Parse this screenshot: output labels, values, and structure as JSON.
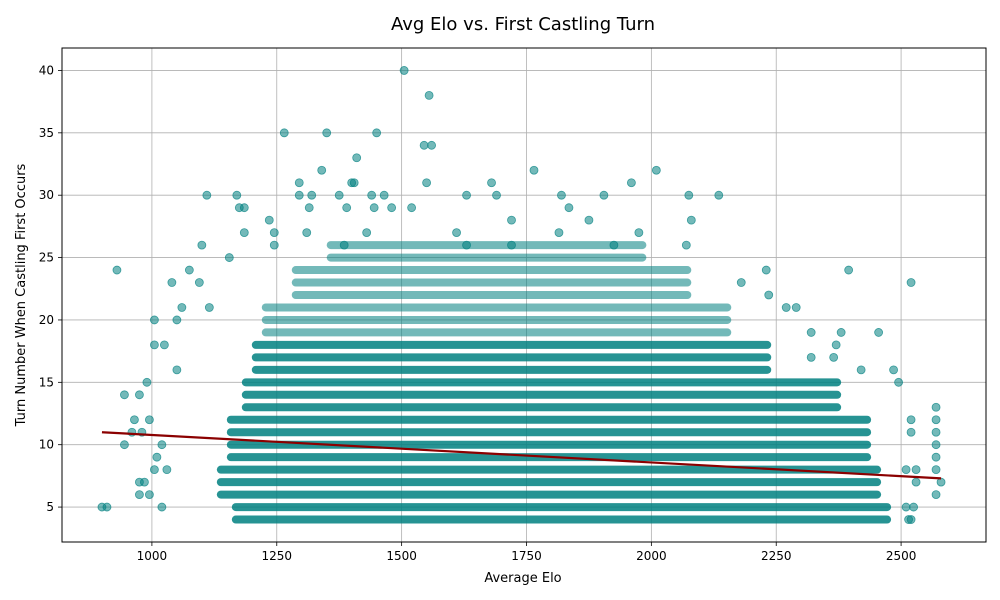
{
  "chart_data": {
    "type": "scatter",
    "title": "Avg Elo vs. First Castling Turn",
    "xlabel": "Average Elo",
    "ylabel": "Turn Number When Castling First Occurs",
    "xlim": [
      820,
      2670
    ],
    "ylim": [
      2.2,
      41.8
    ],
    "x_ticks": [
      1000,
      1250,
      1500,
      1750,
      2000,
      2250,
      2500
    ],
    "y_ticks": [
      5,
      10,
      15,
      20,
      25,
      30,
      35,
      40
    ],
    "grid": true,
    "point_color": "#008080",
    "line_color": "#8B0000",
    "trend_line": {
      "x": [
        900,
        2580
      ],
      "y": [
        11.0,
        7.3
      ]
    },
    "points": {
      "dense_band": {
        "x_range": [
          1230,
          2060
        ],
        "y_range": [
          4,
          18
        ]
      },
      "outliers": [
        {
          "x": 1505,
          "y": 40
        },
        {
          "x": 1555,
          "y": 38
        },
        {
          "x": 1265,
          "y": 35
        },
        {
          "x": 1350,
          "y": 35
        },
        {
          "x": 1450,
          "y": 35
        },
        {
          "x": 1545,
          "y": 34
        },
        {
          "x": 1560,
          "y": 34
        },
        {
          "x": 1410,
          "y": 33
        },
        {
          "x": 1340,
          "y": 32
        },
        {
          "x": 1765,
          "y": 32
        },
        {
          "x": 2010,
          "y": 32
        },
        {
          "x": 1295,
          "y": 31
        },
        {
          "x": 1400,
          "y": 31
        },
        {
          "x": 1405,
          "y": 31
        },
        {
          "x": 1550,
          "y": 31
        },
        {
          "x": 1680,
          "y": 31
        },
        {
          "x": 1960,
          "y": 31
        },
        {
          "x": 1110,
          "y": 30
        },
        {
          "x": 1170,
          "y": 30
        },
        {
          "x": 1295,
          "y": 30
        },
        {
          "x": 1320,
          "y": 30
        },
        {
          "x": 1375,
          "y": 30
        },
        {
          "x": 1440,
          "y": 30
        },
        {
          "x": 1465,
          "y": 30
        },
        {
          "x": 1630,
          "y": 30
        },
        {
          "x": 1690,
          "y": 30
        },
        {
          "x": 1820,
          "y": 30
        },
        {
          "x": 1905,
          "y": 30
        },
        {
          "x": 2075,
          "y": 30
        },
        {
          "x": 2135,
          "y": 30
        },
        {
          "x": 1175,
          "y": 29
        },
        {
          "x": 1185,
          "y": 29
        },
        {
          "x": 1315,
          "y": 29
        },
        {
          "x": 1390,
          "y": 29
        },
        {
          "x": 1445,
          "y": 29
        },
        {
          "x": 1480,
          "y": 29
        },
        {
          "x": 1520,
          "y": 29
        },
        {
          "x": 1835,
          "y": 29
        },
        {
          "x": 1235,
          "y": 28
        },
        {
          "x": 2080,
          "y": 28
        },
        {
          "x": 1875,
          "y": 28
        },
        {
          "x": 1720,
          "y": 28
        },
        {
          "x": 1185,
          "y": 27
        },
        {
          "x": 1245,
          "y": 27
        },
        {
          "x": 1310,
          "y": 27
        },
        {
          "x": 1430,
          "y": 27
        },
        {
          "x": 1610,
          "y": 27
        },
        {
          "x": 1815,
          "y": 27
        },
        {
          "x": 1975,
          "y": 27
        },
        {
          "x": 2070,
          "y": 26
        },
        {
          "x": 1100,
          "y": 26
        },
        {
          "x": 1245,
          "y": 26
        },
        {
          "x": 1385,
          "y": 26
        },
        {
          "x": 1925,
          "y": 26
        },
        {
          "x": 1630,
          "y": 26
        },
        {
          "x": 1720,
          "y": 26
        },
        {
          "x": 2230,
          "y": 24
        },
        {
          "x": 2395,
          "y": 24
        },
        {
          "x": 930,
          "y": 24
        },
        {
          "x": 1075,
          "y": 24
        },
        {
          "x": 1155,
          "y": 25
        },
        {
          "x": 2180,
          "y": 23
        },
        {
          "x": 2235,
          "y": 22
        },
        {
          "x": 2520,
          "y": 23
        },
        {
          "x": 1040,
          "y": 23
        },
        {
          "x": 1095,
          "y": 23
        },
        {
          "x": 1060,
          "y": 21
        },
        {
          "x": 1115,
          "y": 21
        },
        {
          "x": 1005,
          "y": 20
        },
        {
          "x": 1050,
          "y": 20
        },
        {
          "x": 2270,
          "y": 21
        },
        {
          "x": 2290,
          "y": 21
        },
        {
          "x": 2320,
          "y": 19
        },
        {
          "x": 2380,
          "y": 19
        },
        {
          "x": 2455,
          "y": 19
        },
        {
          "x": 1005,
          "y": 18
        },
        {
          "x": 1025,
          "y": 18
        },
        {
          "x": 2370,
          "y": 18
        },
        {
          "x": 2365,
          "y": 17
        },
        {
          "x": 2320,
          "y": 17
        },
        {
          "x": 2485,
          "y": 16
        },
        {
          "x": 2420,
          "y": 16
        },
        {
          "x": 2495,
          "y": 15
        },
        {
          "x": 1050,
          "y": 16
        },
        {
          "x": 990,
          "y": 15
        },
        {
          "x": 945,
          "y": 14
        },
        {
          "x": 975,
          "y": 14
        },
        {
          "x": 965,
          "y": 12
        },
        {
          "x": 995,
          "y": 12
        },
        {
          "x": 960,
          "y": 11
        },
        {
          "x": 980,
          "y": 11
        },
        {
          "x": 2520,
          "y": 12
        },
        {
          "x": 2520,
          "y": 11
        },
        {
          "x": 945,
          "y": 10
        },
        {
          "x": 1020,
          "y": 10
        },
        {
          "x": 1010,
          "y": 9
        },
        {
          "x": 1005,
          "y": 8
        },
        {
          "x": 1030,
          "y": 8
        },
        {
          "x": 2530,
          "y": 8
        },
        {
          "x": 2510,
          "y": 8
        },
        {
          "x": 975,
          "y": 7
        },
        {
          "x": 985,
          "y": 7
        },
        {
          "x": 2530,
          "y": 7
        },
        {
          "x": 2580,
          "y": 7
        },
        {
          "x": 975,
          "y": 6
        },
        {
          "x": 995,
          "y": 6
        },
        {
          "x": 900,
          "y": 5
        },
        {
          "x": 910,
          "y": 5
        },
        {
          "x": 1020,
          "y": 5
        },
        {
          "x": 2510,
          "y": 5
        },
        {
          "x": 2525,
          "y": 5
        },
        {
          "x": 2515,
          "y": 4
        },
        {
          "x": 2520,
          "y": 4
        },
        {
          "x": 2570,
          "y": 13
        },
        {
          "x": 2570,
          "y": 12
        },
        {
          "x": 2570,
          "y": 11
        },
        {
          "x": 2570,
          "y": 10
        },
        {
          "x": 2570,
          "y": 9
        },
        {
          "x": 2570,
          "y": 8
        },
        {
          "x": 2570,
          "y": 6
        }
      ]
    }
  }
}
